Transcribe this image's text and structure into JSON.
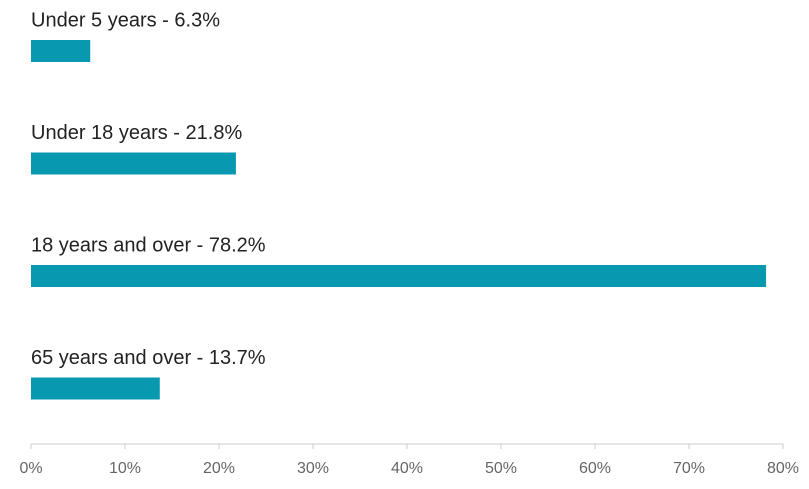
{
  "chart_data": {
    "type": "hbar",
    "categories": [
      "Under 5 years - 6.3%",
      "Under 18 years - 21.8%",
      "18 years and over - 78.2%",
      "65 years and over - 13.7%"
    ],
    "values": [
      6.3,
      21.8,
      78.2,
      13.7
    ],
    "color": "#0899b0",
    "xlim": [
      0,
      80
    ],
    "xticks": [
      {
        "value": 0,
        "label": "0%"
      },
      {
        "value": 10,
        "label": "10%"
      },
      {
        "value": 20,
        "label": "20%"
      },
      {
        "value": 30,
        "label": "30%"
      },
      {
        "value": 40,
        "label": "40%"
      },
      {
        "value": 50,
        "label": "50%"
      },
      {
        "value": 60,
        "label": "60%"
      },
      {
        "value": 70,
        "label": "70%"
      },
      {
        "value": 80,
        "label": "80%"
      }
    ]
  }
}
